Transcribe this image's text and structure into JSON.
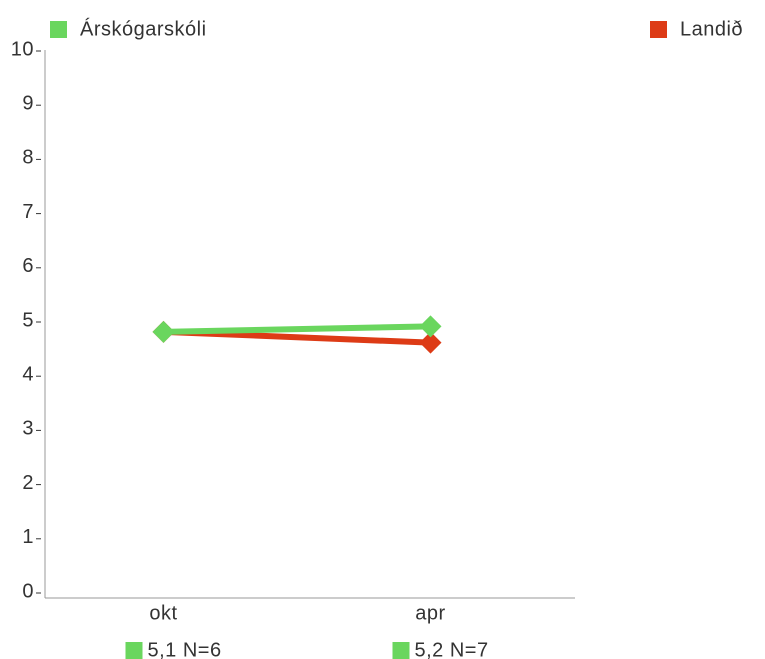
{
  "chart_data": {
    "type": "line",
    "categories": [
      "okt",
      "apr"
    ],
    "series": [
      {
        "name": "Árskógarskóli",
        "color": "#6ad65e",
        "values": [
          4.8,
          4.9
        ]
      },
      {
        "name": "Landið",
        "color": "#dd3b16",
        "values": [
          4.8,
          4.6
        ]
      }
    ],
    "category_notes": [
      "5,1 N=6",
      "5,2 N=7"
    ],
    "note_color": "#6ad65e",
    "ylim": [
      0,
      10
    ],
    "yticks": [
      0,
      1,
      2,
      3,
      4,
      5,
      6,
      7,
      8,
      9,
      10
    ],
    "grid": false
  }
}
